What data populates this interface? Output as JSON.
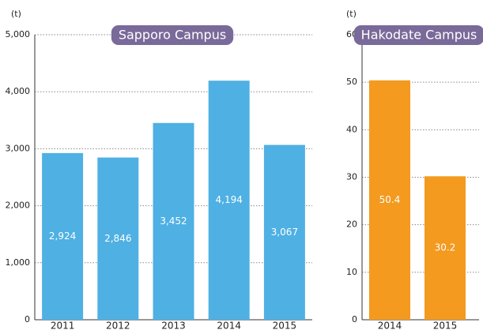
{
  "chart_data": [
    {
      "type": "bar",
      "title": "Sapporo Campus",
      "y_label": "(t)",
      "categories": [
        "2011",
        "2012",
        "2013",
        "2014",
        "2015"
      ],
      "values": [
        2924,
        2846,
        3452,
        4194,
        3067
      ],
      "value_labels": [
        "2,924",
        "2,846",
        "3,452",
        "4,194",
        "3,067"
      ],
      "color": "#4fb0e3",
      "ylim": [
        0,
        5000
      ],
      "yticks": [
        0,
        {
          "value": 1000,
          "label": "1,000"
        },
        {
          "value": 2000,
          "label": "2,000"
        },
        {
          "value": 3000,
          "label": "3,000"
        },
        {
          "value": 4000,
          "label": "4,000"
        },
        {
          "value": 5000,
          "label": "5,000"
        }
      ],
      "grid": true
    },
    {
      "type": "bar",
      "title": "Hakodate Campus",
      "y_label": "(t)",
      "categories": [
        "2014",
        "2015"
      ],
      "values": [
        50.4,
        30.2
      ],
      "color": "#f39a1f",
      "ylim": [
        0,
        60
      ],
      "yticks": [
        0,
        10,
        20,
        30,
        40,
        50,
        60
      ],
      "grid": true
    }
  ]
}
